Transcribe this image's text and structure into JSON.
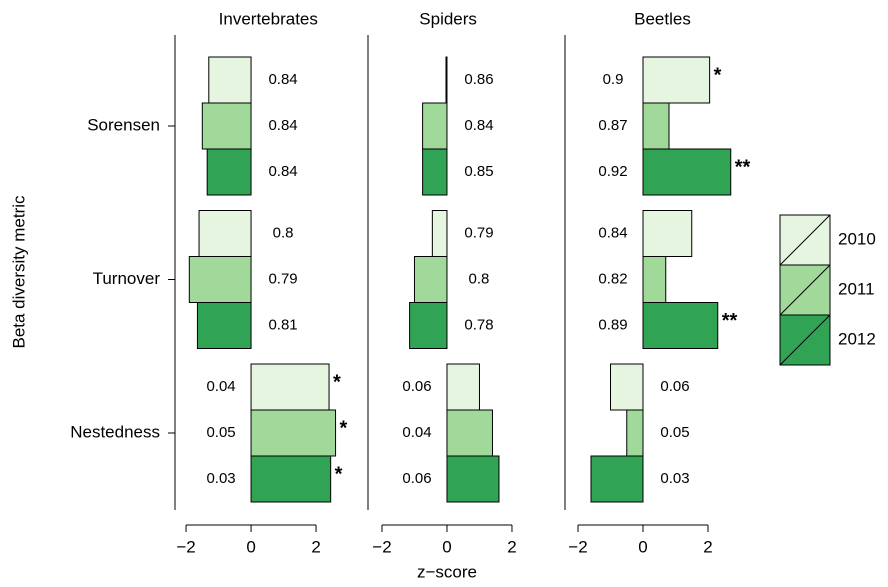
{
  "chart_data": {
    "type": "bar",
    "orientation": "horizontal",
    "ylabel": "Beta diversity metric",
    "xlabel": "z−score",
    "categories": [
      "Sorensen",
      "Turnover",
      "Nestedness"
    ],
    "series": [
      {
        "name": "2010",
        "color": "#e5f5e0"
      },
      {
        "name": "2011",
        "color": "#a1d99b"
      },
      {
        "name": "2012",
        "color": "#31a354"
      }
    ],
    "panels": [
      {
        "title": "Invertebrates",
        "xlim": [
          -2.34,
          3.4
        ],
        "xticks": [
          {
            "value": -2,
            "label": "−2"
          },
          0,
          2
        ],
        "series": [
          {
            "values": [
              -1.3,
              -1.6,
              2.4
            ],
            "value_texts": [
              "0.84",
              "0.8",
              "0.04"
            ],
            "stars": [
              null,
              null,
              "*"
            ]
          },
          {
            "values": [
              -1.5,
              -1.9,
              2.6
            ],
            "value_texts": [
              "0.84",
              "0.79",
              "0.05"
            ],
            "stars": [
              null,
              null,
              "*"
            ]
          },
          {
            "values": [
              -1.35,
              -1.65,
              2.45
            ],
            "value_texts": [
              "0.84",
              "0.81",
              "0.03"
            ],
            "stars": [
              null,
              null,
              "*"
            ]
          }
        ]
      },
      {
        "title": "Spiders",
        "xlim": [
          -2.43,
          2.5
        ],
        "xticks": [
          {
            "value": -2,
            "label": "−2"
          },
          0,
          2
        ],
        "series": [
          {
            "values": [
              -0.03,
              -0.45,
              1.0
            ],
            "value_texts": [
              "0.86",
              "0.79",
              "0.06"
            ],
            "stars": [
              null,
              null,
              null
            ]
          },
          {
            "values": [
              -0.75,
              -1.0,
              1.4
            ],
            "value_texts": [
              "0.84",
              "0.8",
              "0.04"
            ],
            "stars": [
              null,
              null,
              null
            ]
          },
          {
            "values": [
              -0.75,
              -1.15,
              1.6
            ],
            "value_texts": [
              "0.85",
              "0.78",
              "0.06"
            ],
            "stars": [
              null,
              null,
              null
            ]
          }
        ]
      },
      {
        "title": "Beetles",
        "xlim": [
          -2.4,
          3.6
        ],
        "xticks": [
          {
            "value": -2,
            "label": "−2"
          },
          0,
          2
        ],
        "series": [
          {
            "values": [
              2.05,
              1.5,
              -1.0
            ],
            "value_texts": [
              "0.9",
              "0.84",
              "0.06"
            ],
            "stars": [
              "*",
              null,
              null
            ]
          },
          {
            "values": [
              0.8,
              0.7,
              -0.5
            ],
            "value_texts": [
              "0.87",
              "0.82",
              "0.05"
            ],
            "stars": [
              null,
              null,
              null
            ]
          },
          {
            "values": [
              2.7,
              2.3,
              -1.6
            ],
            "value_texts": [
              "0.92",
              "0.89",
              "0.03"
            ],
            "stars": [
              "**",
              "**",
              null
            ]
          }
        ]
      }
    ]
  }
}
